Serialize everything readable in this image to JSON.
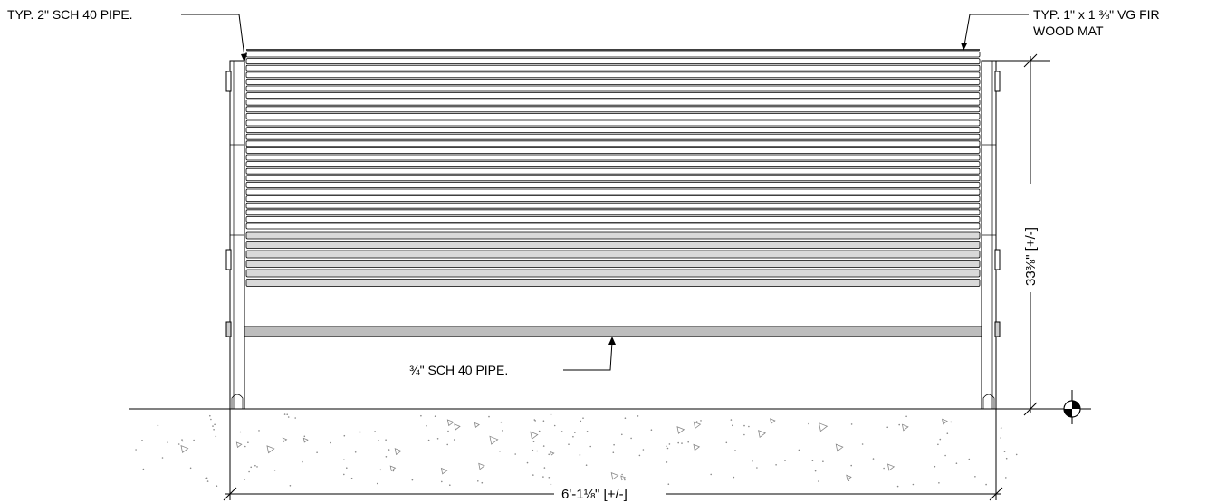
{
  "callouts": {
    "pipe_2in": "TYP. 2\" SCH 40 PIPE.",
    "wood_mat_line1": "TYP. 1\" x 1 ⅜\" VG FIR",
    "wood_mat_line2": "WOOD MAT",
    "pipe_34in": "¾\" SCH 40 PIPE."
  },
  "dimensions": {
    "height": "33⅜\" [+/-]",
    "width": "6'-1⅛\" [+/-]"
  },
  "colors": {
    "line": "#000000",
    "slat_fill": "#ffffff",
    "seat_slat_fill": "#d9d9d9",
    "pipe_fill": "#bdbdbd",
    "aggregate": "#888888"
  }
}
